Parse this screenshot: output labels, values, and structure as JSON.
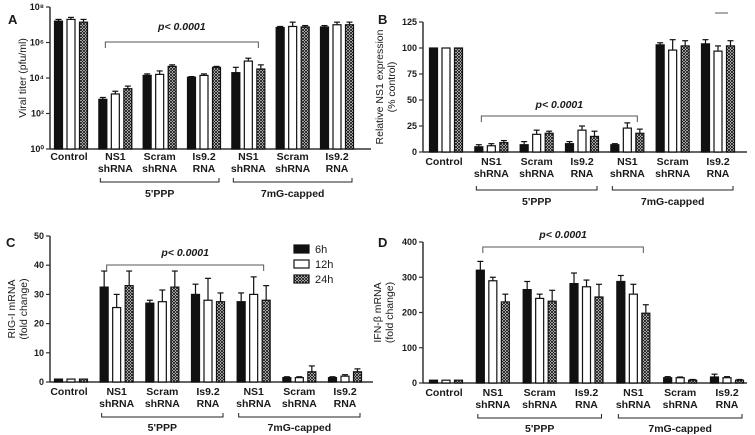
{
  "colors": {
    "filled": "#111111",
    "open": "#ffffff",
    "axis": "#333333",
    "bracket": "#555555"
  },
  "legend": [
    {
      "label": "6h",
      "style": "filled"
    },
    {
      "label": "12h",
      "style": "open"
    },
    {
      "label": "24h",
      "style": "crosshatch"
    }
  ],
  "chart_data": [
    {
      "type": "bar",
      "panel": "A",
      "title": "",
      "scale": "log",
      "ylabel": "Viral titer (pfu/ml)",
      "ylim": [
        1,
        100000000
      ],
      "yticks": [
        1,
        100,
        10000,
        1000000,
        100000000
      ],
      "ytick_labels": [
        "10⁰",
        "10²",
        "10⁴",
        "10⁶",
        "10⁸"
      ],
      "series_names": [
        "6h",
        "12h",
        "24h"
      ],
      "categories": [
        [
          "Control"
        ],
        [
          "NS1",
          "shRNA"
        ],
        [
          "Scram",
          "shRNA"
        ],
        [
          "Is9.2",
          "RNA"
        ],
        [
          "NS1",
          "shRNA"
        ],
        [
          "Scram",
          "shRNA"
        ],
        [
          "Is9.2",
          "RNA"
        ]
      ],
      "groups": [
        {
          "label": "5'PPP",
          "from": 1,
          "to": 3
        },
        {
          "label": "7mG-capped",
          "from": 4,
          "to": 6
        }
      ],
      "annotation": {
        "text": "p< 0.0001",
        "from": 1,
        "to": 4
      },
      "values": [
        [
          16000000,
          20000000,
          14000000
        ],
        [
          630,
          1260,
          2500
        ],
        [
          14000,
          16000,
          45000
        ],
        [
          11000,
          14000,
          40000
        ],
        [
          20000,
          90000,
          32000
        ],
        [
          7000000,
          8000000,
          7500000
        ],
        [
          7500000,
          10000000,
          10000000
        ]
      ],
      "error_upper": [
        [
          20000000,
          26000000,
          20000000
        ],
        [
          800,
          1800,
          3500
        ],
        [
          17000,
          25000,
          55000
        ],
        [
          12000,
          17000,
          45000
        ],
        [
          40000,
          130000,
          55000
        ],
        [
          8000000,
          14000000,
          9000000
        ],
        [
          9000000,
          14000000,
          14000000
        ]
      ]
    },
    {
      "type": "bar",
      "panel": "B",
      "title": "",
      "scale": "linear",
      "ylabel": "Relative NS1 expression",
      "ylabel2": "(% control)",
      "ylim": [
        0,
        125
      ],
      "yticks": [
        0,
        25,
        50,
        75,
        100,
        125
      ],
      "ytick_labels": [
        "0",
        "25",
        "50",
        "75",
        "100",
        "125"
      ],
      "series_names": [
        "6h",
        "12h",
        "24h"
      ],
      "categories": [
        [
          "Control"
        ],
        [
          "NS1",
          "shRNA"
        ],
        [
          "Scram",
          "shRNA"
        ],
        [
          "Is9.2",
          "RNA"
        ],
        [
          "NS1",
          "shRNA"
        ],
        [
          "Scram",
          "shRNA"
        ],
        [
          "Is9.2",
          "RNA"
        ]
      ],
      "groups": [
        {
          "label": "5'PPP",
          "from": 1,
          "to": 3
        },
        {
          "label": "7mG-capped",
          "from": 4,
          "to": 6
        }
      ],
      "annotation": {
        "text": "p< 0.0001",
        "from": 1,
        "to": 4
      },
      "values": [
        [
          100,
          100,
          100
        ],
        [
          5,
          6,
          9
        ],
        [
          7,
          17,
          18
        ],
        [
          8,
          21,
          15
        ],
        [
          7,
          23,
          18
        ],
        [
          103,
          98,
          102
        ],
        [
          104,
          97,
          102
        ]
      ],
      "error_upper": [
        [
          100,
          100,
          100
        ],
        [
          7,
          8,
          11
        ],
        [
          10,
          21,
          20
        ],
        [
          10,
          25,
          20
        ],
        [
          8,
          28,
          22
        ],
        [
          105,
          108,
          107
        ],
        [
          108,
          102,
          107
        ]
      ]
    },
    {
      "type": "bar",
      "panel": "C",
      "title": "",
      "scale": "linear",
      "ylabel": "RIG-I  mRNA",
      "ylabel2": "(fold change)",
      "ylim": [
        0,
        50
      ],
      "yticks": [
        0,
        10,
        20,
        30,
        40,
        50
      ],
      "ytick_labels": [
        "0",
        "10",
        "20",
        "30",
        "40",
        "50"
      ],
      "series_names": [
        "6h",
        "12h",
        "24h"
      ],
      "legend_position": "top-right",
      "categories": [
        [
          "Control"
        ],
        [
          "NS1",
          "shRNA"
        ],
        [
          "Scram",
          "shRNA"
        ],
        [
          "Is9.2",
          "RNA"
        ],
        [
          "NS1",
          "shRNA"
        ],
        [
          "Scram",
          "shRNA"
        ],
        [
          "Is9.2",
          "RNA"
        ]
      ],
      "groups": [
        {
          "label": "5'PPP",
          "from": 1,
          "to": 3
        },
        {
          "label": "7mG-capped",
          "from": 4,
          "to": 6
        }
      ],
      "annotation": {
        "text": "p< 0.0001",
        "from": 1,
        "to": 4
      },
      "values": [
        [
          1,
          1,
          1
        ],
        [
          32.5,
          25.5,
          33
        ],
        [
          27,
          27.5,
          32.5
        ],
        [
          30,
          28,
          27.5
        ],
        [
          27.5,
          30,
          28
        ],
        [
          1.5,
          1.5,
          3.5
        ],
        [
          1.5,
          2,
          3.5
        ]
      ],
      "error_upper": [
        [
          1,
          1,
          1
        ],
        [
          38,
          30,
          38
        ],
        [
          28,
          31.5,
          38
        ],
        [
          33.5,
          35.5,
          30.5
        ],
        [
          30.5,
          36,
          33
        ],
        [
          1.8,
          1.8,
          5.5
        ],
        [
          1.8,
          2.5,
          4.5
        ]
      ]
    },
    {
      "type": "bar",
      "panel": "D",
      "title": "",
      "scale": "linear",
      "ylabel": "IFN-β  mRNA",
      "ylabel2": "(fold change)",
      "ylim": [
        0,
        400
      ],
      "yticks": [
        0,
        100,
        200,
        300,
        400
      ],
      "ytick_labels": [
        "0",
        "100",
        "200",
        "300",
        "400"
      ],
      "series_names": [
        "6h",
        "12h",
        "24h"
      ],
      "categories": [
        [
          "Control"
        ],
        [
          "NS1",
          "shRNA"
        ],
        [
          "Scram",
          "shRNA"
        ],
        [
          "Is9.2",
          "RNA"
        ],
        [
          "NS1",
          "shRNA"
        ],
        [
          "Scram",
          "shRNA"
        ],
        [
          "Is9.2",
          "RNA"
        ]
      ],
      "groups": [
        {
          "label": "5'PPP",
          "from": 1,
          "to": 3
        },
        {
          "label": "7mG-capped",
          "from": 4,
          "to": 6
        }
      ],
      "annotation": {
        "text": "p< 0.0001",
        "from": 1,
        "to": 4
      },
      "values": [
        [
          8,
          8,
          8
        ],
        [
          320,
          290,
          230
        ],
        [
          265,
          240,
          232
        ],
        [
          282,
          273,
          244
        ],
        [
          288,
          252,
          198
        ],
        [
          15,
          15,
          8
        ],
        [
          17,
          15,
          8
        ]
      ],
      "error_upper": [
        [
          8,
          8,
          8
        ],
        [
          345,
          300,
          252
        ],
        [
          288,
          252,
          263
        ],
        [
          312,
          292,
          280
        ],
        [
          305,
          280,
          222
        ],
        [
          18,
          17,
          10
        ],
        [
          25,
          18,
          10
        ]
      ]
    }
  ]
}
